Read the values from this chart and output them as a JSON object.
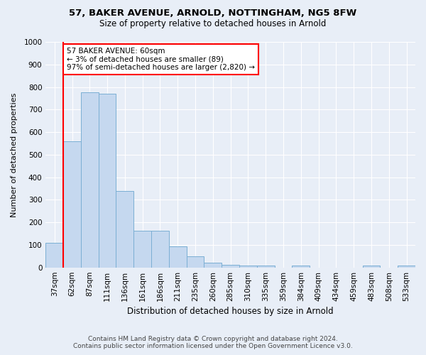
{
  "title_line1": "57, BAKER AVENUE, ARNOLD, NOTTINGHAM, NG5 8FW",
  "title_line2": "Size of property relative to detached houses in Arnold",
  "xlabel": "Distribution of detached houses by size in Arnold",
  "ylabel": "Number of detached properties",
  "categories": [
    "37sqm",
    "62sqm",
    "87sqm",
    "111sqm",
    "136sqm",
    "161sqm",
    "186sqm",
    "211sqm",
    "235sqm",
    "260sqm",
    "285sqm",
    "310sqm",
    "335sqm",
    "359sqm",
    "384sqm",
    "409sqm",
    "434sqm",
    "459sqm",
    "483sqm",
    "508sqm",
    "533sqm"
  ],
  "values": [
    110,
    560,
    775,
    770,
    340,
    163,
    163,
    95,
    50,
    20,
    13,
    10,
    10,
    0,
    10,
    0,
    0,
    0,
    10,
    0,
    10
  ],
  "bar_color": "#c5d8ef",
  "bar_edge_color": "#7bafd4",
  "subject_line_color": "red",
  "annotation_text": "57 BAKER AVENUE: 60sqm\n← 3% of detached houses are smaller (89)\n97% of semi-detached houses are larger (2,820) →",
  "annotation_box_color": "white",
  "annotation_edge_color": "red",
  "ylim": [
    0,
    1000
  ],
  "yticks": [
    0,
    100,
    200,
    300,
    400,
    500,
    600,
    700,
    800,
    900,
    1000
  ],
  "footer_line1": "Contains HM Land Registry data © Crown copyright and database right 2024.",
  "footer_line2": "Contains public sector information licensed under the Open Government Licence v3.0.",
  "background_color": "#e8eef7",
  "plot_bg_color": "#e8eef7",
  "grid_color": "#ffffff",
  "title_fontsize": 9.5,
  "subtitle_fontsize": 8.5,
  "ylabel_fontsize": 8,
  "xlabel_fontsize": 8.5,
  "tick_fontsize": 7.5,
  "annot_fontsize": 7.5,
  "footer_fontsize": 6.5
}
